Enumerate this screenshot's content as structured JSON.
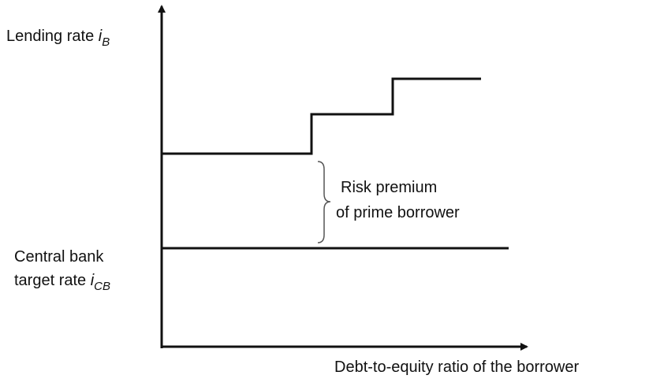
{
  "y_axis_label": {
    "text": "Lending rate ",
    "var": "i",
    "sub": "B"
  },
  "target_label": {
    "lines": [
      "Central bank",
      "target rate "
    ],
    "var": "i",
    "sub": "CB"
  },
  "annotation": {
    "lines": [
      "Risk premium",
      "of prime borrower"
    ]
  },
  "x_axis_label": "Debt-to-equity ratio of the borrower"
}
